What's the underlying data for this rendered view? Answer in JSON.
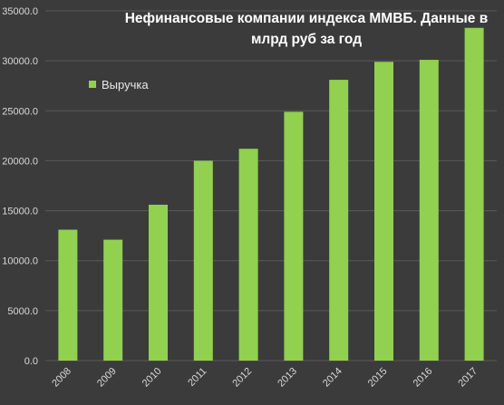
{
  "colors": {
    "background": "#3b3b3b",
    "bar": "#92d050",
    "gridline": "#5a5a5a",
    "axis_text": "#d9d9d9",
    "title_text": "#ffffff"
  },
  "chart_data": {
    "type": "bar",
    "title_lines": [
      "Нефинансовые компании индекса ММВБ. Данные в",
      "млрд руб за год"
    ],
    "categories": [
      "2008",
      "2009",
      "2010",
      "2011",
      "2012",
      "2013",
      "2014",
      "2015",
      "2016",
      "2017"
    ],
    "series": [
      {
        "name": "Выручка",
        "values": [
          13100,
          12100,
          15600,
          20000,
          21200,
          24900,
          28100,
          29900,
          30100,
          33300
        ]
      }
    ],
    "ylim": [
      0,
      35000
    ],
    "yticks": [
      "0.0",
      "5000.0",
      "10000.0",
      "15000.0",
      "20000.0",
      "25000.0",
      "30000.0",
      "35000.0"
    ],
    "grid": true,
    "legend_position": "top-left"
  }
}
